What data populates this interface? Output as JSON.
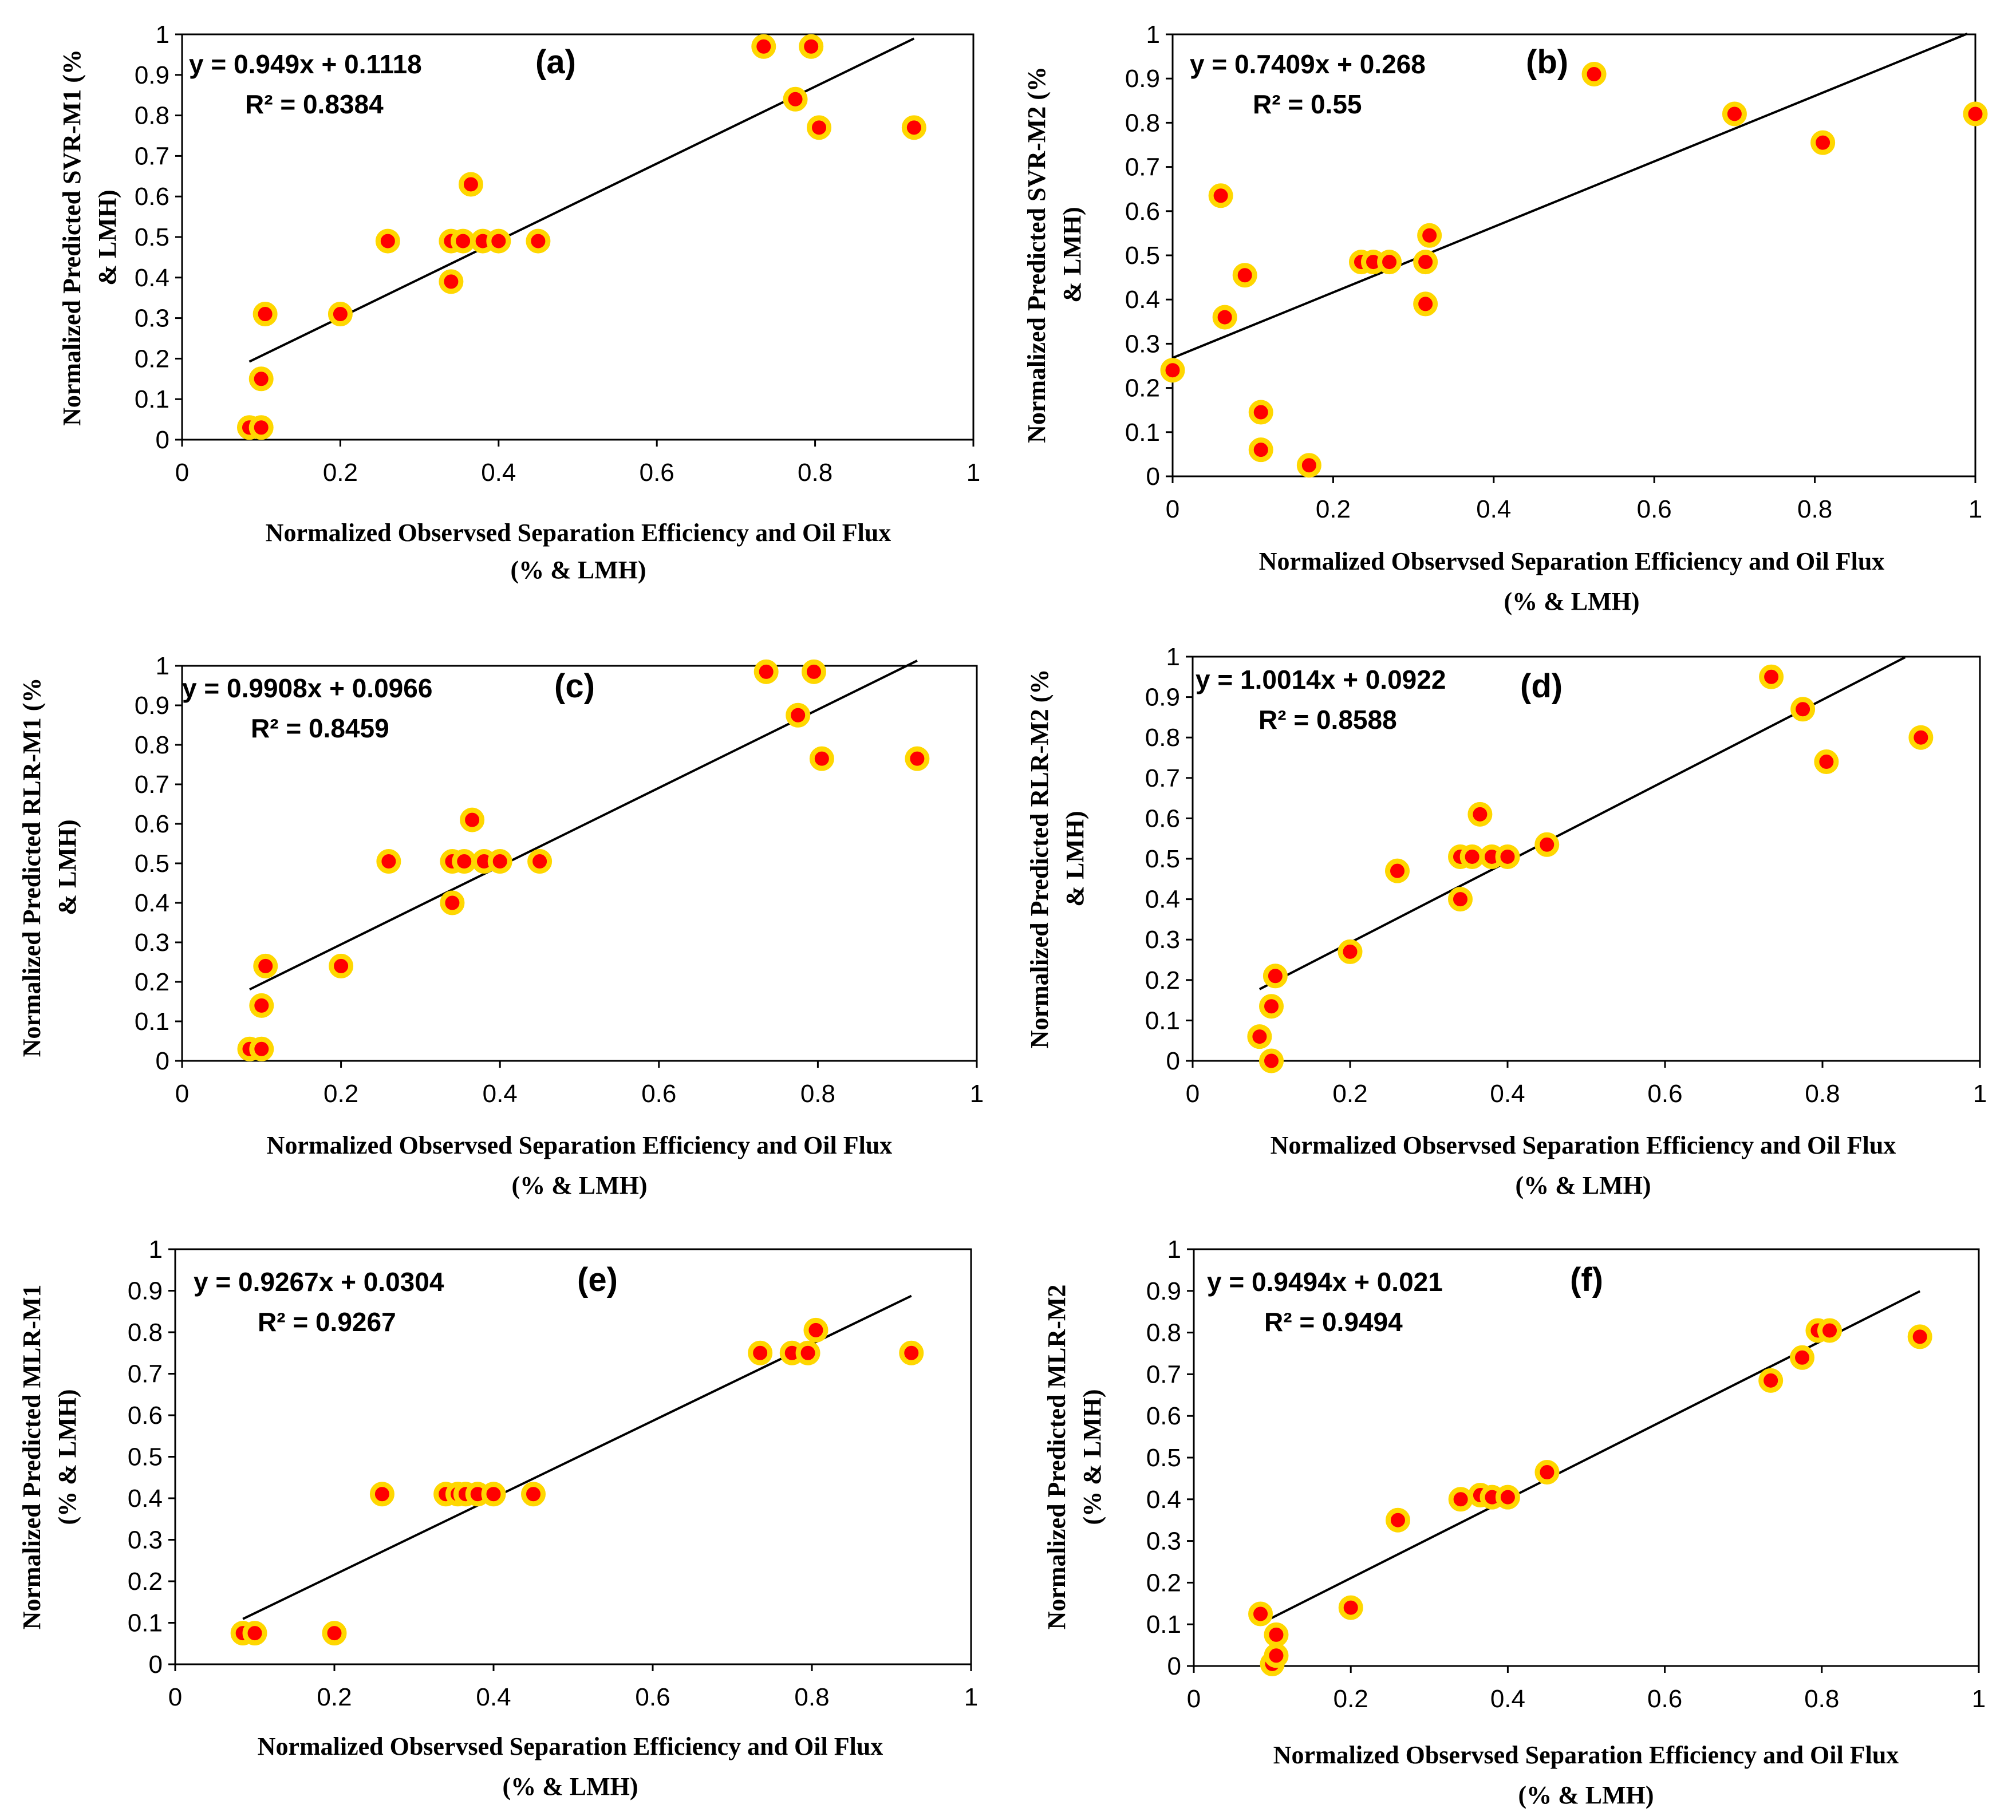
{
  "chart_data": [
    {
      "type": "scatter",
      "panel_label": "(a)",
      "ylabel": [
        "Normalized Predicted SVR-M1 (%",
        "& LMH)"
      ],
      "xlabel": [
        "Normalized Observsed Separation Efficiency and Oil Flux",
        "(% & LMH)"
      ],
      "equation": "y = 0.949x + 0.1118",
      "r2": "R² = 0.8384",
      "slope": 0.949,
      "intercept": 0.1118,
      "fit_x": [
        0.085,
        0.925
      ],
      "xlim": [
        0,
        1
      ],
      "ylim": [
        0,
        1
      ],
      "x_ticks": [
        "0",
        "0.2",
        "0.4",
        "0.6",
        "0.8",
        "1"
      ],
      "y_ticks": [
        "0",
        "0.1",
        "0.2",
        "0.3",
        "0.4",
        "0.5",
        "0.6",
        "0.7",
        "0.8",
        "0.9",
        "1"
      ],
      "grid": false,
      "marker": {
        "fill": "#ff0000",
        "stroke": "#ffd700"
      },
      "x": [
        0.085,
        0.1,
        0.1,
        0.105,
        0.2,
        0.26,
        0.34,
        0.34,
        0.355,
        0.365,
        0.38,
        0.4,
        0.45,
        0.735,
        0.775,
        0.795,
        0.805,
        0.925
      ],
      "y": [
        0.03,
        0.03,
        0.15,
        0.31,
        0.31,
        0.49,
        0.39,
        0.49,
        0.49,
        0.63,
        0.49,
        0.49,
        0.49,
        0.97,
        0.84,
        0.97,
        0.77,
        0.77
      ]
    },
    {
      "type": "scatter",
      "panel_label": "(b)",
      "ylabel": [
        "Normalized Predicted SVR-M2 (%",
        "& LMH)"
      ],
      "xlabel": [
        "Normalized Observsed Separation Efficiency and Oil Flux",
        "(% & LMH)"
      ],
      "equation": "y = 0.7409x + 0.268",
      "r2": "R² = 0.55",
      "slope": 0.7409,
      "intercept": 0.268,
      "fit_x": [
        0,
        0.99
      ],
      "xlim": [
        0,
        1
      ],
      "ylim": [
        0,
        1
      ],
      "x_ticks": [
        "0",
        "0.2",
        "0.4",
        "0.6",
        "0.8",
        "1"
      ],
      "y_ticks": [
        "0",
        "0.1",
        "0.2",
        "0.3",
        "0.4",
        "0.5",
        "0.6",
        "0.7",
        "0.8",
        "0.9",
        "1"
      ],
      "grid": false,
      "marker": {
        "fill": "#ff0000",
        "stroke": "#ffd700"
      },
      "x": [
        0,
        0.06,
        0.065,
        0.09,
        0.11,
        0.11,
        0.17,
        0.235,
        0.25,
        0.27,
        0.315,
        0.315,
        0.32,
        0.525,
        0.7,
        0.81,
        1.0
      ],
      "y": [
        0.24,
        0.635,
        0.36,
        0.455,
        0.145,
        0.06,
        0.025,
        0.485,
        0.485,
        0.485,
        0.485,
        0.39,
        0.545,
        0.91,
        0.82,
        0.755,
        0.82
      ]
    },
    {
      "type": "scatter",
      "panel_label": "(c)",
      "ylabel": [
        "Normalized Predicted RLR-M1 (%",
        "& LMH)"
      ],
      "xlabel": [
        "Normalized Observsed Separation Efficiency and Oil Flux",
        "(% & LMH)"
      ],
      "equation": "y = 0.9908x + 0.0966",
      "r2": "R² = 0.8459",
      "slope": 0.9908,
      "intercept": 0.0966,
      "fit_x": [
        0.085,
        0.925
      ],
      "xlim": [
        0,
        1
      ],
      "ylim": [
        0,
        1
      ],
      "x_ticks": [
        "0",
        "0.2",
        "0.4",
        "0.6",
        "0.8",
        "1"
      ],
      "y_ticks": [
        "0",
        "0.1",
        "0.2",
        "0.3",
        "0.4",
        "0.5",
        "0.6",
        "0.7",
        "0.8",
        "0.9",
        "1"
      ],
      "grid": false,
      "marker": {
        "fill": "#ff0000",
        "stroke": "#ffd700"
      },
      "x": [
        0.085,
        0.1,
        0.1,
        0.105,
        0.2,
        0.26,
        0.34,
        0.34,
        0.355,
        0.365,
        0.38,
        0.4,
        0.45,
        0.735,
        0.775,
        0.795,
        0.805,
        0.925
      ],
      "y": [
        0.03,
        0.03,
        0.14,
        0.24,
        0.24,
        0.505,
        0.4,
        0.505,
        0.505,
        0.61,
        0.505,
        0.505,
        0.505,
        0.985,
        0.875,
        0.985,
        0.765,
        0.765
      ]
    },
    {
      "type": "scatter",
      "panel_label": "(d)",
      "ylabel": [
        "Normalized Predicted RLR-M2 (%",
        "& LMH)"
      ],
      "xlabel": [
        "Normalized Observsed Separation Efficiency and Oil Flux",
        "(% & LMH)"
      ],
      "equation": "y = 1.0014x + 0.0922",
      "r2": "R² = 0.8588",
      "slope": 1.0014,
      "intercept": 0.0922,
      "fit_x": [
        0.085,
        0.905
      ],
      "xlim": [
        0,
        1
      ],
      "ylim": [
        0,
        1
      ],
      "x_ticks": [
        "0",
        "0.2",
        "0.4",
        "0.6",
        "0.8",
        "1"
      ],
      "y_ticks": [
        "0",
        "0.1",
        "0.2",
        "0.3",
        "0.4",
        "0.5",
        "0.6",
        "0.7",
        "0.8",
        "0.9",
        "1"
      ],
      "grid": false,
      "marker": {
        "fill": "#ff0000",
        "stroke": "#ffd700"
      },
      "x": [
        0.085,
        0.1,
        0.1,
        0.105,
        0.2,
        0.26,
        0.34,
        0.34,
        0.355,
        0.365,
        0.38,
        0.4,
        0.45,
        0.735,
        0.775,
        0.805,
        0.925
      ],
      "y": [
        0.06,
        0.0,
        0.135,
        0.21,
        0.27,
        0.47,
        0.4,
        0.505,
        0.505,
        0.61,
        0.505,
        0.505,
        0.535,
        0.95,
        0.87,
        0.74,
        0.8
      ]
    },
    {
      "type": "scatter",
      "panel_label": "(e)",
      "ylabel": [
        "Normalized Predicted MLR-M1",
        "(% & LMH)"
      ],
      "xlabel": [
        "Normalized Observsed Separation Efficiency and Oil Flux",
        "(% & LMH)"
      ],
      "equation": "y = 0.9267x + 0.0304",
      "r2": "R² = 0.9267",
      "slope": 0.9267,
      "intercept": 0.0304,
      "fit_x": [
        0.085,
        0.925
      ],
      "xlim": [
        0,
        1
      ],
      "ylim": [
        0,
        1
      ],
      "x_ticks": [
        "0",
        "0.2",
        "0.4",
        "0.6",
        "0.8",
        "1"
      ],
      "y_ticks": [
        "0",
        "0.1",
        "0.2",
        "0.3",
        "0.4",
        "0.5",
        "0.6",
        "0.7",
        "0.8",
        "0.9",
        "1"
      ],
      "grid": false,
      "marker": {
        "fill": "#ff0000",
        "stroke": "#ffd700"
      },
      "x": [
        0.085,
        0.1,
        0.2,
        0.26,
        0.34,
        0.355,
        0.365,
        0.38,
        0.4,
        0.45,
        0.735,
        0.775,
        0.795,
        0.805,
        0.925
      ],
      "y": [
        0.075,
        0.075,
        0.075,
        0.41,
        0.41,
        0.41,
        0.41,
        0.41,
        0.41,
        0.41,
        0.75,
        0.75,
        0.75,
        0.805,
        0.75
      ]
    },
    {
      "type": "scatter",
      "panel_label": "(f)",
      "ylabel": [
        "Normalized Predicted MLR-M2",
        "(% & LMH)"
      ],
      "xlabel": [
        "Normalized Observsed Separation Efficiency and Oil Flux",
        "(% & LMH)"
      ],
      "equation": "y = 0.9494x + 0.021",
      "r2": "R² = 0.9494",
      "slope": 0.9494,
      "intercept": 0.021,
      "fit_x": [
        0.085,
        0.925
      ],
      "xlim": [
        0,
        1
      ],
      "ylim": [
        0,
        1
      ],
      "x_ticks": [
        "0",
        "0.2",
        "0.4",
        "0.6",
        "0.8",
        "1"
      ],
      "y_ticks": [
        "0",
        "0.1",
        "0.2",
        "0.3",
        "0.4",
        "0.5",
        "0.6",
        "0.7",
        "0.8",
        "0.9",
        "1"
      ],
      "grid": false,
      "marker": {
        "fill": "#ff0000",
        "stroke": "#ffd700"
      },
      "x": [
        0.085,
        0.1,
        0.105,
        0.105,
        0.2,
        0.26,
        0.34,
        0.365,
        0.38,
        0.4,
        0.45,
        0.735,
        0.775,
        0.795,
        0.81,
        0.925
      ],
      "y": [
        0.125,
        0.005,
        0.075,
        0.025,
        0.14,
        0.35,
        0.4,
        0.41,
        0.405,
        0.405,
        0.465,
        0.685,
        0.74,
        0.805,
        0.805,
        0.79
      ]
    }
  ]
}
